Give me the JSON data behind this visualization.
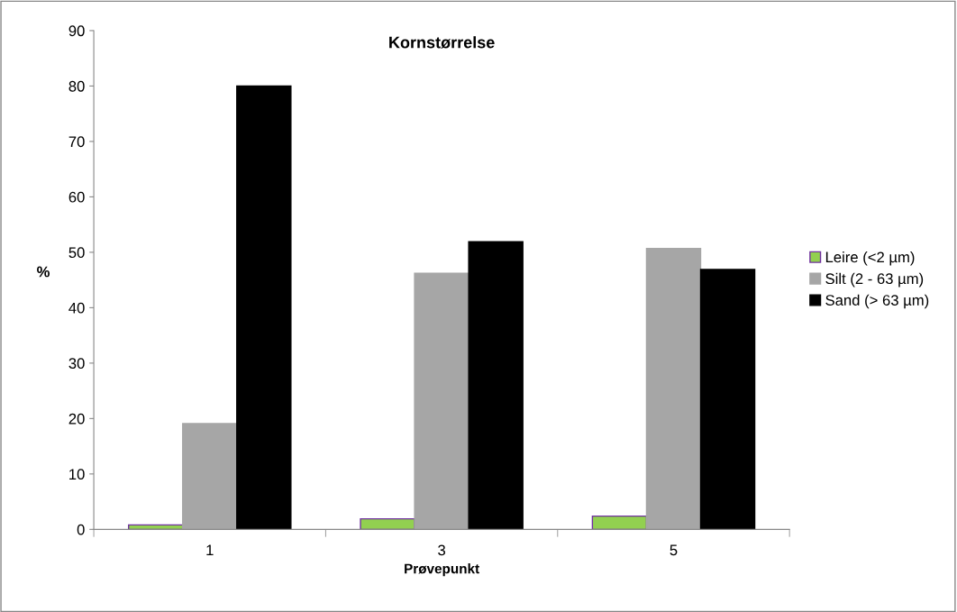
{
  "chart_data": {
    "type": "bar",
    "title": "Kornstørrelse",
    "xlabel": "Prøvepunkt",
    "ylabel": "%",
    "categories": [
      "1",
      "3",
      "5"
    ],
    "series": [
      {
        "name": "Leire (<2 µm)",
        "color": "#92d050",
        "values": [
          0.8,
          1.9,
          2.4
        ]
      },
      {
        "name": "Silt (2 - 63 µm)",
        "color": "#a6a6a6",
        "values": [
          19.1,
          46.2,
          50.7
        ]
      },
      {
        "name": "Sand (> 63 µm)",
        "color": "#000000",
        "values": [
          80,
          51.9,
          46.9
        ]
      }
    ],
    "ylim": [
      0,
      90
    ],
    "yticks": [
      0,
      10,
      20,
      30,
      40,
      50,
      60,
      70,
      80,
      90
    ],
    "grid": false,
    "legend": "right"
  }
}
